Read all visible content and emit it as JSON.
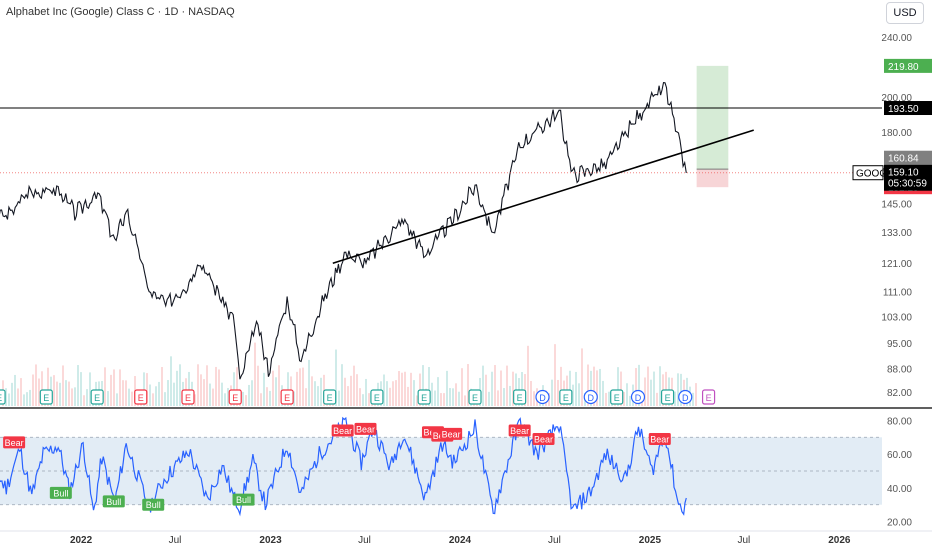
{
  "header": {
    "title": "Alphabet Inc (Google) Class C · 1D · NASDAQ",
    "currency": "USD"
  },
  "colors": {
    "up": "#26a69a",
    "down": "#ef5350",
    "price_line": "#000000",
    "rsi_line": "#2962ff",
    "rsi_band": "#dbe7f3",
    "target_zone": "#cfe8cf",
    "stop_zone": "#f6d0d3",
    "bull_badge": "#4caf50",
    "bear_badge": "#f23645"
  },
  "price_labels": {
    "target": "219.80",
    "resistance": "193.50",
    "last": "160.84",
    "current": "159.10",
    "countdown": "05:30:59",
    "stop": "152.29",
    "ticker": "GOOG"
  },
  "chart_data": [
    {
      "type": "line",
      "title": "Alphabet Inc (Google) Class C · 1D · NASDAQ",
      "scale": "log",
      "y_ticks": [
        "240.00",
        "200.00",
        "180.00",
        "160.00",
        "145.00",
        "133.00",
        "121.00",
        "111.00",
        "103.00",
        "95.00",
        "88.00",
        "82.00"
      ],
      "x_ticks": [
        "2022",
        "Jul",
        "2023",
        "Jul",
        "2024",
        "Jul",
        "2025",
        "Jul",
        "2026"
      ],
      "x_range": [
        "2021-06",
        "2026-03"
      ],
      "y_range": [
        80,
        245
      ],
      "price_points": [
        [
          "2021-07-01",
          139
        ],
        [
          "2021-08-15",
          140
        ],
        [
          "2021-09-20",
          150
        ],
        [
          "2021-11-18",
          151
        ],
        [
          "2021-12-20",
          141
        ],
        [
          "2022-02-02",
          149
        ],
        [
          "2022-03-07",
          129
        ],
        [
          "2022-03-29",
          142
        ],
        [
          "2022-05-12",
          111
        ],
        [
          "2022-06-16",
          107
        ],
        [
          "2022-07-28",
          114
        ],
        [
          "2022-08-16",
          122
        ],
        [
          "2022-10-24",
          101
        ],
        [
          "2022-11-03",
          84
        ],
        [
          "2022-12-05",
          101
        ],
        [
          "2022-12-28",
          87
        ],
        [
          "2023-02-02",
          108
        ],
        [
          "2023-03-01",
          90
        ],
        [
          "2023-04-05",
          105
        ],
        [
          "2023-05-26",
          125
        ],
        [
          "2023-07-01",
          121
        ],
        [
          "2023-09-14",
          138
        ],
        [
          "2023-10-26",
          124
        ],
        [
          "2023-12-28",
          141
        ],
        [
          "2024-01-30",
          153
        ],
        [
          "2024-03-05",
          132
        ],
        [
          "2024-04-26",
          173
        ],
        [
          "2024-07-10",
          191
        ],
        [
          "2024-08-05",
          158
        ],
        [
          "2024-10-08",
          163
        ],
        [
          "2024-12-10",
          189
        ],
        [
          "2025-01-30",
          207
        ],
        [
          "2025-02-25",
          175
        ],
        [
          "2025-03-12",
          159
        ]
      ],
      "trendline": {
        "from": [
          "2023-05-01",
          121
        ],
        "to": [
          "2025-07-20",
          181
        ]
      },
      "resistance": 193.5,
      "position": {
        "entry": 160.84,
        "target": 219.8,
        "stop": 152.29,
        "start": "2025-04-01",
        "end": "2025-06-01"
      },
      "events": [
        {
          "date": "2021-07-27",
          "label": "E"
        },
        {
          "date": "2021-10-26",
          "label": "E"
        },
        {
          "date": "2022-02-01",
          "label": "E"
        },
        {
          "date": "2022-04-26",
          "label": "E"
        },
        {
          "date": "2022-07-26",
          "label": "E"
        },
        {
          "date": "2022-10-25",
          "label": "E"
        },
        {
          "date": "2023-02-02",
          "label": "E"
        },
        {
          "date": "2023-04-25",
          "label": "E"
        },
        {
          "date": "2023-07-25",
          "label": "E"
        },
        {
          "date": "2023-10-24",
          "label": "E"
        },
        {
          "date": "2024-01-30",
          "label": "E"
        },
        {
          "date": "2024-04-25",
          "label": "E"
        },
        {
          "date": "2024-06-08",
          "label": "D"
        },
        {
          "date": "2024-07-23",
          "label": "E"
        },
        {
          "date": "2024-09-09",
          "label": "D"
        },
        {
          "date": "2024-10-29",
          "label": "E"
        },
        {
          "date": "2024-12-09",
          "label": "D"
        },
        {
          "date": "2025-02-04",
          "label": "E"
        },
        {
          "date": "2025-03-10",
          "label": "D"
        },
        {
          "date": "2025-04-24",
          "label": "E"
        }
      ]
    },
    {
      "type": "line",
      "title": "",
      "y_ticks": [
        "80.00",
        "60.00",
        "40.00",
        "20.00"
      ],
      "y_range": [
        15,
        85
      ],
      "band": [
        30,
        70
      ],
      "mid": 50,
      "rsi_points": [
        [
          "2021-06-15",
          72
        ],
        [
          "2021-07-10",
          52
        ],
        [
          "2021-08-10",
          40
        ],
        [
          "2021-09-05",
          63
        ],
        [
          "2021-09-28",
          35
        ],
        [
          "2021-10-20",
          60
        ],
        [
          "2021-11-18",
          65
        ],
        [
          "2021-12-10",
          38
        ],
        [
          "2022-01-05",
          66
        ],
        [
          "2022-01-25",
          25
        ],
        [
          "2022-02-10",
          58
        ],
        [
          "2022-03-07",
          31
        ],
        [
          "2022-03-29",
          66
        ],
        [
          "2022-05-12",
          28
        ],
        [
          "2022-06-10",
          45
        ],
        [
          "2022-07-28",
          62
        ],
        [
          "2022-09-01",
          33
        ],
        [
          "2022-09-30",
          53
        ],
        [
          "2022-10-24",
          33
        ],
        [
          "2022-11-03",
          29
        ],
        [
          "2022-11-28",
          56
        ],
        [
          "2022-12-22",
          30
        ],
        [
          "2023-02-02",
          66
        ],
        [
          "2023-02-28",
          36
        ],
        [
          "2023-04-05",
          60
        ],
        [
          "2023-05-26",
          79
        ],
        [
          "2023-06-25",
          55
        ],
        [
          "2023-07-18",
          76
        ],
        [
          "2023-08-20",
          52
        ],
        [
          "2023-09-14",
          73
        ],
        [
          "2023-10-26",
          34
        ],
        [
          "2023-11-28",
          66
        ],
        [
          "2023-12-20",
          55
        ],
        [
          "2024-01-30",
          76
        ],
        [
          "2024-03-05",
          26
        ],
        [
          "2024-04-26",
          80
        ],
        [
          "2024-05-28",
          60
        ],
        [
          "2024-07-10",
          78
        ],
        [
          "2024-08-05",
          26
        ],
        [
          "2024-09-09",
          38
        ],
        [
          "2024-10-08",
          60
        ],
        [
          "2024-11-15",
          45
        ],
        [
          "2024-12-10",
          76
        ],
        [
          "2025-01-05",
          50
        ],
        [
          "2025-01-30",
          73
        ],
        [
          "2025-02-25",
          30
        ],
        [
          "2025-03-07",
          28
        ],
        [
          "2025-03-12",
          34
        ]
      ],
      "signals": [
        {
          "date": "2021-06-20",
          "label": "Bear",
          "value": 78
        },
        {
          "date": "2021-08-25",
          "label": "Bear",
          "value": 67
        },
        {
          "date": "2021-11-23",
          "label": "Bull",
          "value": 37
        },
        {
          "date": "2022-03-05",
          "label": "Bull",
          "value": 32
        },
        {
          "date": "2022-05-20",
          "label": "Bull",
          "value": 30
        },
        {
          "date": "2022-11-10",
          "label": "Bull",
          "value": 33
        },
        {
          "date": "2023-05-20",
          "label": "Bear",
          "value": 74
        },
        {
          "date": "2023-07-03",
          "label": "Bear",
          "value": 75
        },
        {
          "date": "2023-11-10",
          "label": "Bear",
          "value": 73
        },
        {
          "date": "2023-11-28",
          "label": "Bear",
          "value": 71
        },
        {
          "date": "2023-12-15",
          "label": "Bear",
          "value": 72
        },
        {
          "date": "2024-04-25",
          "label": "Bear",
          "value": 74
        },
        {
          "date": "2024-06-10",
          "label": "Bear",
          "value": 69
        },
        {
          "date": "2025-01-20",
          "label": "Bear",
          "value": 69
        }
      ]
    }
  ]
}
